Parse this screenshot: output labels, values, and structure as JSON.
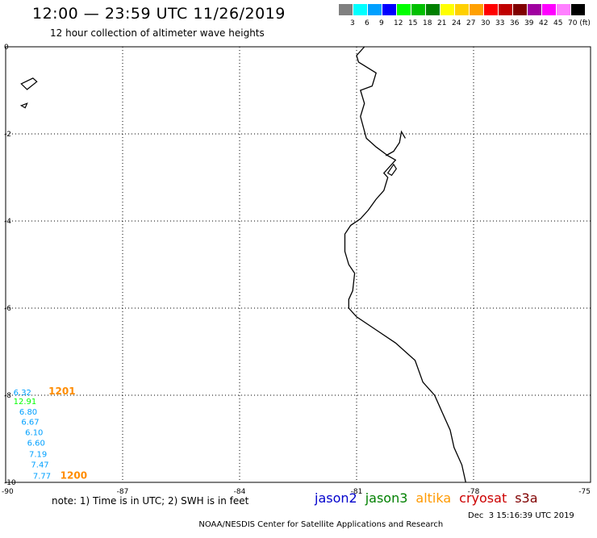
{
  "header": {
    "title": "12:00 — 23:59 UTC 11/26/2019",
    "subtitle": "12 hour collection of altimeter wave heights"
  },
  "legend": {
    "colors": [
      "#808080",
      "#00ffff",
      "#00a0ff",
      "#0000ff",
      "#00ff00",
      "#00c000",
      "#008000",
      "#ffff00",
      "#ffd000",
      "#ffa000",
      "#ff0000",
      "#c00000",
      "#800000",
      "#a000a0",
      "#ff00ff",
      "#ff80ff",
      "#000000"
    ],
    "labels": [
      "3",
      "6",
      "9",
      "12",
      "15",
      "18",
      "21",
      "24",
      "27",
      "30",
      "33",
      "36",
      "39",
      "42",
      "45",
      "70 (ft)"
    ]
  },
  "map": {
    "x_ticks": [
      "-90",
      "-87",
      "-84",
      "-81",
      "-78",
      "-75"
    ],
    "y_ticks": [
      "0",
      "-2",
      "-4",
      "-6",
      "-8",
      "-10"
    ],
    "extent": {
      "lon": [
        -90,
        -75
      ],
      "lat": [
        -10,
        0
      ]
    },
    "coastline_color": "#000000"
  },
  "observations": {
    "values": [
      {
        "text": "6.32",
        "lon": -89.8,
        "lat": -8.0,
        "color": "#00a0ff"
      },
      {
        "text": "12.91",
        "lon": -89.8,
        "lat": -8.2,
        "color": "#00ff00"
      },
      {
        "text": "6.80",
        "lon": -89.65,
        "lat": -8.44,
        "color": "#00a0ff"
      },
      {
        "text": "6.67",
        "lon": -89.6,
        "lat": -8.68,
        "color": "#00a0ff"
      },
      {
        "text": "6.10",
        "lon": -89.5,
        "lat": -8.92,
        "color": "#00a0ff"
      },
      {
        "text": "6.60",
        "lon": -89.45,
        "lat": -9.16,
        "color": "#00a0ff"
      },
      {
        "text": "7.19",
        "lon": -89.4,
        "lat": -9.42,
        "color": "#00a0ff"
      },
      {
        "text": "7.47",
        "lon": -89.35,
        "lat": -9.66,
        "color": "#00a0ff"
      },
      {
        "text": "7.77",
        "lon": -89.3,
        "lat": -9.92,
        "color": "#00a0ff"
      }
    ],
    "times": [
      {
        "text": "1201",
        "lon": -88.9,
        "lat": -7.98,
        "color": "#ff8c00"
      },
      {
        "text": "1200",
        "lon": -88.6,
        "lat": -9.92,
        "color": "#ff8c00"
      }
    ]
  },
  "footer": {
    "note": "note: 1) Time is in UTC; 2) SWH is in feet",
    "satellites": [
      {
        "name": "jason2",
        "color": "#0000cc"
      },
      {
        "name": "jason3",
        "color": "#008000"
      },
      {
        "name": "altika",
        "color": "#ff9900"
      },
      {
        "name": "cryosat",
        "color": "#cc0000"
      },
      {
        "name": "s3a",
        "color": "#800000"
      }
    ],
    "credit": "NOAA/NESDIS Center for Satellite Applications and Research",
    "timestamp": "Dec  3 15:16:39 UTC 2019"
  }
}
